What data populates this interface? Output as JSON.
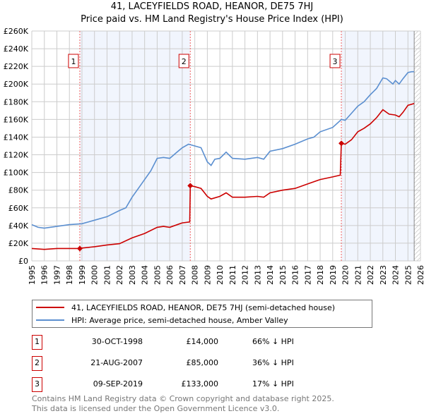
{
  "chart_data": {
    "type": "line",
    "title": "41, LACEYFIELDS ROAD, HEANOR, DE75 7HJ",
    "subtitle": "Price paid vs. HM Land Registry's House Price Index (HPI)",
    "xlim": [
      1995,
      2026
    ],
    "ylim": [
      0,
      260000
    ],
    "x_ticks": [
      "1995",
      "1996",
      "1997",
      "1998",
      "1999",
      "2000",
      "2001",
      "2002",
      "2003",
      "2004",
      "2005",
      "2006",
      "2007",
      "2008",
      "2009",
      "2010",
      "2011",
      "2012",
      "2013",
      "2014",
      "2015",
      "2016",
      "2017",
      "2018",
      "2019",
      "2020",
      "2021",
      "2022",
      "2023",
      "2024",
      "2025",
      "2026"
    ],
    "y_ticks": [
      {
        "v": 0,
        "label": "£0"
      },
      {
        "v": 20000,
        "label": "£20K"
      },
      {
        "v": 40000,
        "label": "£40K"
      },
      {
        "v": 60000,
        "label": "£60K"
      },
      {
        "v": 80000,
        "label": "£80K"
      },
      {
        "v": 100000,
        "label": "£100K"
      },
      {
        "v": 120000,
        "label": "£120K"
      },
      {
        "v": 140000,
        "label": "£140K"
      },
      {
        "v": 160000,
        "label": "£160K"
      },
      {
        "v": 180000,
        "label": "£180K"
      },
      {
        "v": 200000,
        "label": "£200K"
      },
      {
        "v": 220000,
        "label": "£220K"
      },
      {
        "v": 240000,
        "label": "£240K"
      },
      {
        "v": 260000,
        "label": "£260K"
      }
    ],
    "grid": true,
    "series": [
      {
        "name": "41, LACEYFIELDS ROAD, HEANOR, DE75 7HJ (semi-detached house)",
        "color": "#cc0000",
        "x": [
          1995,
          1996,
          1997,
          1998,
          1998.83,
          1999,
          2000,
          2001,
          2002,
          2003,
          2004,
          2005,
          2005.5,
          2006,
          2007,
          2007.6,
          2007.64,
          2008,
          2008.5,
          2009,
          2009.3,
          2010,
          2010.5,
          2011,
          2012,
          2013,
          2013.5,
          2014,
          2015,
          2016,
          2017,
          2018,
          2019,
          2019.6,
          2019.69,
          2020,
          2020.5,
          2021,
          2021.5,
          2022,
          2022.5,
          2023,
          2023.5,
          2024,
          2024.3,
          2024.6,
          2025,
          2025.5
        ],
        "y": [
          14000,
          13000,
          14000,
          14000,
          14000,
          14500,
          16000,
          18000,
          19500,
          26000,
          31000,
          38000,
          39000,
          38000,
          43000,
          44000,
          85000,
          84000,
          82000,
          73000,
          70000,
          73000,
          77000,
          72000,
          72000,
          73000,
          72000,
          77000,
          80000,
          82000,
          87000,
          92000,
          95000,
          97000,
          133000,
          132000,
          137000,
          146000,
          150000,
          155000,
          162000,
          171000,
          166000,
          165000,
          163000,
          168000,
          176000,
          178000
        ]
      },
      {
        "name": "HPI: Average price, semi-detached house, Amber Valley",
        "color": "#5b8fd0",
        "x": [
          1995,
          1995.5,
          1996,
          1997,
          1998,
          1999,
          2000,
          2001,
          2002,
          2002.5,
          2003,
          2003.5,
          2004,
          2004.5,
          2005,
          2005.5,
          2006,
          2006.5,
          2007,
          2007.5,
          2008,
          2008.5,
          2009,
          2009.3,
          2009.6,
          2010,
          2010.5,
          2011,
          2012,
          2013,
          2013.5,
          2014,
          2015,
          2016,
          2017,
          2017.5,
          2018,
          2019,
          2019.7,
          2020,
          2020.5,
          2021,
          2021.5,
          2022,
          2022.5,
          2023,
          2023.3,
          2023.8,
          2024,
          2024.3,
          2024.6,
          2025,
          2025.3,
          2025.5
        ],
        "y": [
          41000,
          38000,
          37000,
          39000,
          41000,
          42000,
          46000,
          50000,
          57000,
          60000,
          72000,
          82000,
          92000,
          102000,
          116000,
          117000,
          116000,
          122000,
          128000,
          132000,
          130000,
          128000,
          112000,
          108000,
          115000,
          116000,
          123000,
          116000,
          115000,
          117000,
          115000,
          124000,
          127000,
          132000,
          138000,
          140000,
          146000,
          151000,
          160000,
          159000,
          167000,
          175000,
          180000,
          188000,
          195000,
          207000,
          206000,
          200000,
          204000,
          200000,
          206000,
          213000,
          214000,
          214000
        ]
      }
    ],
    "sales": [
      {
        "n": "1",
        "x": 1998.83,
        "y": 14000,
        "date": "30-OCT-1998",
        "price": "£14,000",
        "hpi": "66% ↓ HPI"
      },
      {
        "n": "2",
        "x": 2007.64,
        "y": 85000,
        "date": "21-AUG-2007",
        "price": "£85,000",
        "hpi": "36% ↓ HPI"
      },
      {
        "n": "3",
        "x": 2019.69,
        "y": 133000,
        "date": "09-SEP-2019",
        "price": "£133,000",
        "hpi": "17% ↓ HPI"
      }
    ],
    "shaded_ranges": [
      [
        1998.83,
        2007.64
      ],
      [
        2019.69,
        2025.5
      ]
    ],
    "forecast_start": 2025.5,
    "legend_position": "below"
  },
  "footer": {
    "line1": "Contains HM Land Registry data © Crown copyright and database right 2025.",
    "line2": "This data is licensed under the Open Government Licence v3.0."
  }
}
